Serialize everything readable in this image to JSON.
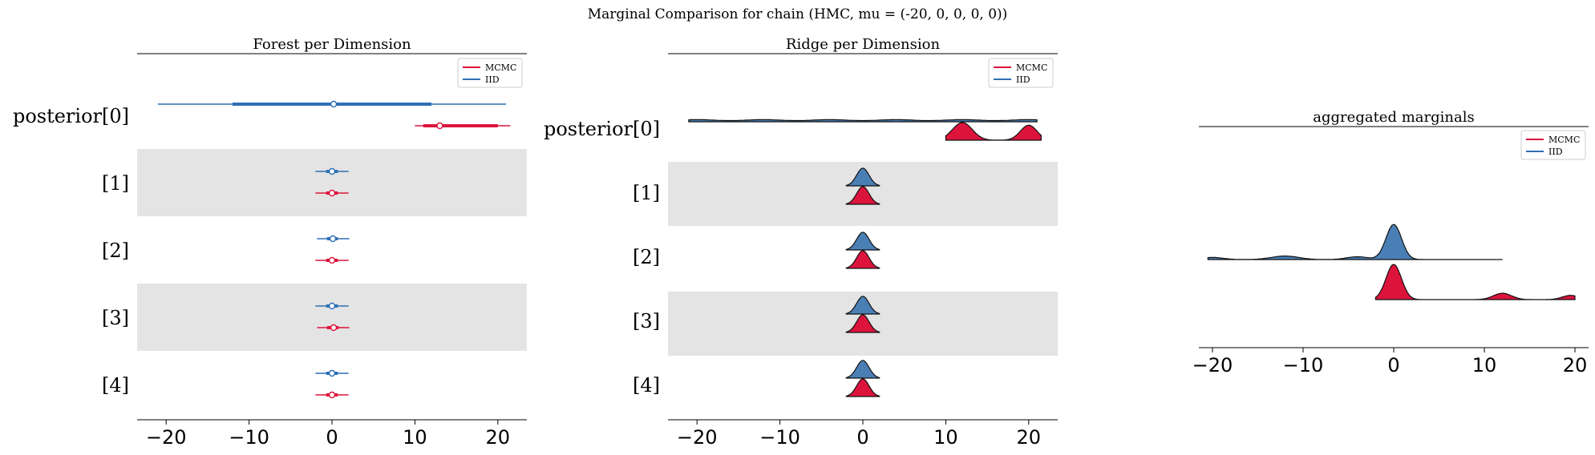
{
  "title": "Marginal Comparison for chain (HMC, mu = (-20, 0, 0, 0, 0))",
  "colors": {
    "mcmc": "#dc143c",
    "iid": "#2e6fb5",
    "iid_fill": "#4a7fb5",
    "band": "#e4e4e4"
  },
  "chart_data": [
    {
      "type": "forest",
      "title": "Forest per Dimension",
      "xlim": [
        -23.5,
        23.5
      ],
      "xticks": [
        -20,
        -10,
        0,
        10,
        20
      ],
      "xtick_labels": [
        "−20",
        "−10",
        "0",
        "10",
        "20"
      ],
      "row_labels": [
        "posterior[0]",
        "[1]",
        "[2]",
        "[3]",
        "[4]"
      ],
      "shaded_rows": [
        1,
        3
      ],
      "legend": {
        "position": "top-right",
        "entries": [
          "MCMC",
          "IID"
        ]
      },
      "series": [
        {
          "name": "IID",
          "values": [
            {
              "median": 0.2,
              "hdi_thin": [
                -21,
                21
              ],
              "hdi_thick": [
                -12,
                12
              ]
            },
            {
              "median": 0.0,
              "hdi_thin": [
                -2,
                2
              ],
              "hdi_thick": [
                -0.7,
                0.7
              ]
            },
            {
              "median": 0.1,
              "hdi_thin": [
                -1.8,
                2.1
              ],
              "hdi_thick": [
                -0.6,
                0.7
              ]
            },
            {
              "median": 0.0,
              "hdi_thin": [
                -2,
                2
              ],
              "hdi_thick": [
                -0.7,
                0.7
              ]
            },
            {
              "median": 0.0,
              "hdi_thin": [
                -2,
                2
              ],
              "hdi_thick": [
                -0.7,
                0.7
              ]
            }
          ]
        },
        {
          "name": "MCMC",
          "values": [
            {
              "median": 13,
              "hdi_thin": [
                10,
                21.5
              ],
              "hdi_thick": [
                11,
                20
              ]
            },
            {
              "median": 0.0,
              "hdi_thin": [
                -2,
                2
              ],
              "hdi_thick": [
                -0.7,
                0.7
              ]
            },
            {
              "median": 0.0,
              "hdi_thin": [
                -2,
                2
              ],
              "hdi_thick": [
                -0.7,
                0.7
              ]
            },
            {
              "median": 0.2,
              "hdi_thin": [
                -1.8,
                2.1
              ],
              "hdi_thick": [
                -0.6,
                0.8
              ]
            },
            {
              "median": 0.0,
              "hdi_thin": [
                -2,
                2
              ],
              "hdi_thick": [
                -0.7,
                0.7
              ]
            }
          ]
        }
      ]
    },
    {
      "type": "ridge",
      "title": "Ridge per Dimension",
      "xlim": [
        -23.5,
        23.5
      ],
      "xticks": [
        -20,
        -10,
        0,
        10,
        20
      ],
      "xtick_labels": [
        "−20",
        "−10",
        "0",
        "10",
        "20"
      ],
      "row_labels": [
        "posterior[0]",
        "[1]",
        "[2]",
        "[3]",
        "[4]"
      ],
      "shaded_rows": [
        1,
        3
      ],
      "legend": {
        "position": "top-right",
        "entries": [
          "MCMC",
          "IID"
        ]
      },
      "series": [
        {
          "name": "IID",
          "rows": [
            {
              "range": [
                -21,
                21
              ],
              "peaks": [
                [
                  -20,
                  0.12,
                  2.5
                ],
                [
                  -12,
                  0.12,
                  2.5
                ],
                [
                  -4,
                  0.12,
                  2.5
                ],
                [
                  4,
                  0.12,
                  2.5
                ],
                [
                  12,
                  0.12,
                  2.5
                ],
                [
                  20,
                  0.12,
                  2.5
                ]
              ]
            },
            {
              "range": [
                -2,
                2
              ],
              "peaks": [
                [
                  0,
                  1,
                  0.75
                ]
              ]
            },
            {
              "range": [
                -2,
                2
              ],
              "peaks": [
                [
                  0,
                  1,
                  0.75
                ]
              ]
            },
            {
              "range": [
                -2,
                2
              ],
              "peaks": [
                [
                  0,
                  1,
                  0.75
                ]
              ]
            },
            {
              "range": [
                -2,
                2
              ],
              "peaks": [
                [
                  0,
                  1,
                  0.75
                ]
              ]
            }
          ]
        },
        {
          "name": "MCMC",
          "rows": [
            {
              "range": [
                10,
                21.5
              ],
              "peaks": [
                [
                  12,
                  1,
                  1.2
                ],
                [
                  20,
                  0.85,
                  1
                ]
              ]
            },
            {
              "range": [
                -2,
                2
              ],
              "peaks": [
                [
                  0,
                  1,
                  0.75
                ]
              ]
            },
            {
              "range": [
                -2,
                2
              ],
              "peaks": [
                [
                  0,
                  1,
                  0.75
                ]
              ]
            },
            {
              "range": [
                -2,
                2
              ],
              "peaks": [
                [
                  0,
                  1,
                  0.75
                ]
              ]
            },
            {
              "range": [
                -2,
                2
              ],
              "peaks": [
                [
                  0,
                  1,
                  0.75
                ]
              ]
            }
          ]
        }
      ]
    },
    {
      "type": "ridge",
      "title": "aggregated marginals",
      "xlim": [
        -21.5,
        21.5
      ],
      "xticks": [
        -20,
        -10,
        0,
        10,
        20
      ],
      "xtick_labels": [
        "−20",
        "−10",
        "0",
        "10",
        "20"
      ],
      "legend": {
        "position": "top-right",
        "entries": [
          "MCMC",
          "IID"
        ]
      },
      "series": [
        {
          "name": "IID",
          "range": [
            -20.5,
            12
          ],
          "peaks": [
            [
              0,
              1,
              0.85
            ],
            [
              -12,
              0.1,
              1.5
            ],
            [
              -4,
              0.08,
              1.2
            ],
            [
              -20,
              0.06,
              1.2
            ]
          ]
        },
        {
          "name": "MCMC",
          "range": [
            -2,
            20
          ],
          "peaks": [
            [
              0,
              1,
              0.85
            ],
            [
              12,
              0.18,
              1
            ],
            [
              19.5,
              0.12,
              0.9
            ]
          ]
        }
      ]
    }
  ]
}
